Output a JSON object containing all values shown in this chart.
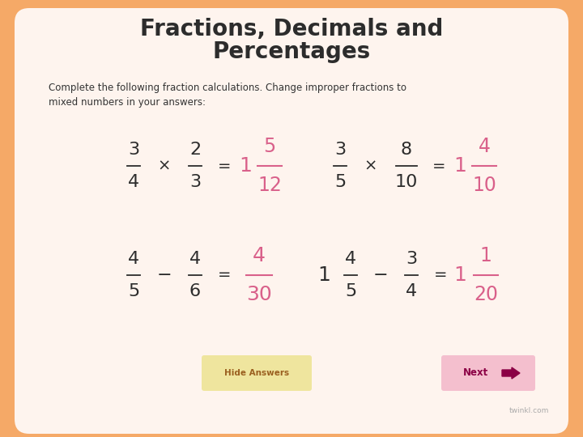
{
  "bg_color": "#F5A967",
  "card_color": "#FEF4EE",
  "title_line1": "Fractions, Decimals and",
  "title_line2": "Percentages",
  "title_color": "#2C2C2C",
  "subtitle": "Complete the following fraction calculations. Change improper fractions to\nmixed numbers in your answers:",
  "subtitle_color": "#333333",
  "answer_color": "#D9608A",
  "fraction_color": "#2C2C2C",
  "button_hide_bg": "#EFE59E",
  "button_hide_text": "Hide Answers",
  "button_hide_text_color": "#9B6020",
  "button_next_bg": "#F4BFCE",
  "button_next_text": "Next",
  "button_next_arrow_color": "#8B0045"
}
